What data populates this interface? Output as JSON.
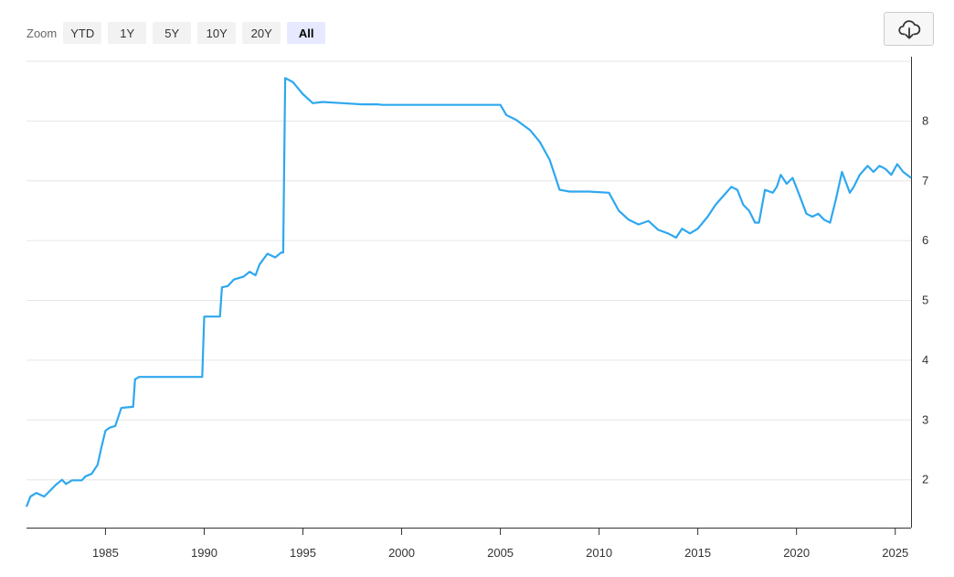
{
  "toolbar": {
    "zoom_label": "Zoom",
    "zoom_buttons": [
      "YTD",
      "1Y",
      "5Y",
      "10Y",
      "20Y",
      "All"
    ],
    "active_zoom": "All",
    "download_icon": "cloud-download-icon"
  },
  "colors": {
    "series": "#2ea8ef",
    "grid": "#e6e6e6",
    "active_button": "#e6e9ff",
    "button": "#f2f2f2"
  },
  "chart_data": {
    "type": "line",
    "title": "",
    "xlabel": "",
    "ylabel": "",
    "y_axis_side": "right",
    "grid": "horizontal",
    "xlim": [
      1981.0,
      2025.8
    ],
    "ylim": [
      1.2,
      9.0
    ],
    "x_ticks": [
      1985,
      1990,
      1995,
      2000,
      2005,
      2010,
      2015,
      2020,
      2025
    ],
    "y_ticks": [
      2,
      3,
      4,
      5,
      6,
      7,
      8
    ],
    "series": [
      {
        "name": "",
        "x": [
          1981.0,
          1981.2,
          1981.5,
          1981.9,
          1982.2,
          1982.5,
          1982.8,
          1983.0,
          1983.3,
          1983.6,
          1983.8,
          1984.0,
          1984.3,
          1984.6,
          1984.8,
          1985.0,
          1985.2,
          1985.5,
          1985.8,
          1986.0,
          1986.4,
          1986.5,
          1986.7,
          1987.0,
          1989.0,
          1989.9,
          1990.0,
          1990.8,
          1990.9,
          1991.2,
          1991.5,
          1992.0,
          1992.3,
          1992.6,
          1992.8,
          1993.2,
          1993.6,
          1993.9,
          1994.0,
          1994.1,
          1994.5,
          1995.0,
          1995.5,
          1996.0,
          1997.0,
          1998.0,
          1998.8,
          1999.0,
          2005.0,
          2005.3,
          2005.8,
          2006.5,
          2007.0,
          2007.5,
          2008.0,
          2008.5,
          2009.0,
          2009.5,
          2010.5,
          2011.0,
          2011.5,
          2012.0,
          2012.5,
          2013.0,
          2013.5,
          2013.9,
          2014.2,
          2014.6,
          2015.0,
          2015.5,
          2015.9,
          2016.3,
          2016.7,
          2017.0,
          2017.3,
          2017.6,
          2017.9,
          2018.1,
          2018.4,
          2018.8,
          2019.0,
          2019.2,
          2019.5,
          2019.8,
          2020.1,
          2020.5,
          2020.8,
          2021.1,
          2021.4,
          2021.7,
          2022.0,
          2022.3,
          2022.7,
          2022.9,
          2023.2,
          2023.6,
          2023.9,
          2024.2,
          2024.5,
          2024.8,
          2025.1,
          2025.4,
          2025.8
        ],
        "values": [
          1.55,
          1.72,
          1.78,
          1.72,
          1.82,
          1.92,
          2.0,
          1.93,
          1.99,
          1.99,
          1.99,
          2.06,
          2.1,
          2.25,
          2.55,
          2.82,
          2.87,
          2.9,
          3.2,
          3.21,
          3.22,
          3.68,
          3.72,
          3.72,
          3.72,
          3.72,
          4.73,
          4.73,
          5.22,
          5.24,
          5.35,
          5.4,
          5.48,
          5.42,
          5.6,
          5.78,
          5.72,
          5.8,
          5.8,
          8.72,
          8.65,
          8.45,
          8.3,
          8.32,
          8.3,
          8.28,
          8.28,
          8.27,
          8.27,
          8.1,
          8.02,
          7.85,
          7.65,
          7.35,
          6.85,
          6.82,
          6.82,
          6.82,
          6.8,
          6.5,
          6.35,
          6.27,
          6.33,
          6.18,
          6.12,
          6.05,
          6.2,
          6.12,
          6.2,
          6.4,
          6.6,
          6.75,
          6.9,
          6.85,
          6.6,
          6.5,
          6.3,
          6.3,
          6.85,
          6.8,
          6.9,
          7.1,
          6.95,
          7.05,
          6.8,
          6.45,
          6.4,
          6.45,
          6.35,
          6.3,
          6.7,
          7.15,
          6.8,
          6.9,
          7.1,
          7.25,
          7.15,
          7.25,
          7.2,
          7.1,
          7.28,
          7.15,
          7.05
        ]
      }
    ]
  }
}
